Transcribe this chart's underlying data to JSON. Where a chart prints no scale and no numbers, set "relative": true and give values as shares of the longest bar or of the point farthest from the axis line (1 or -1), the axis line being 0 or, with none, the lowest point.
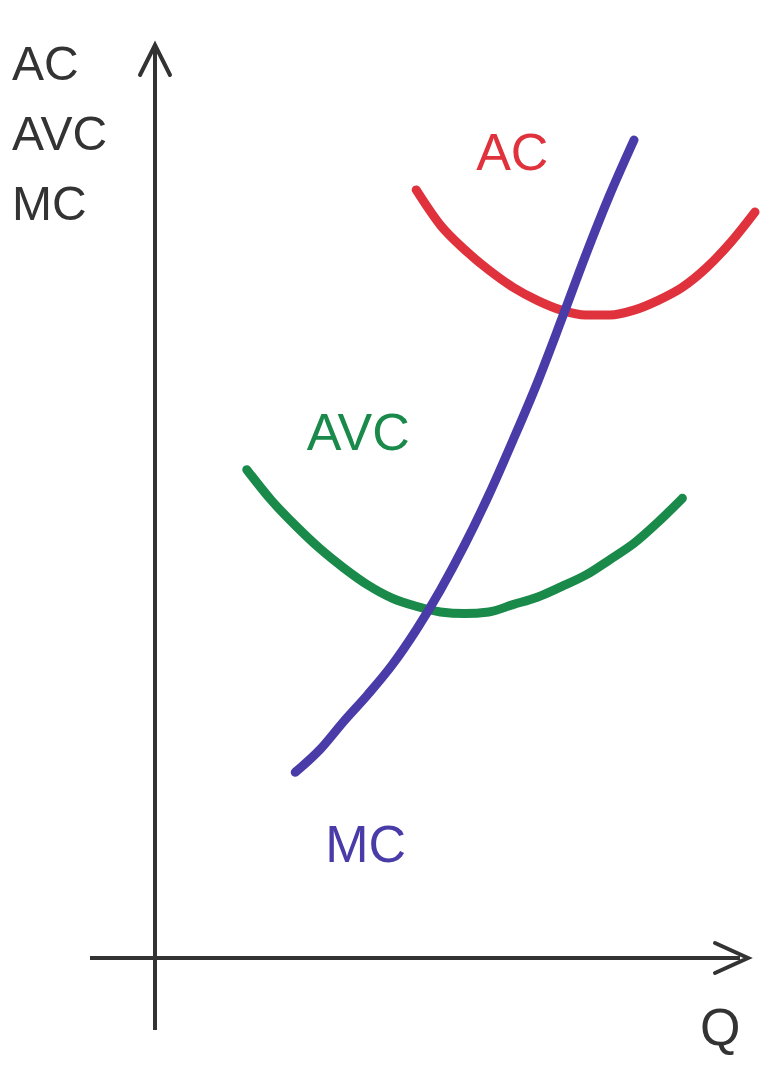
{
  "chart_data": {
    "type": "line",
    "relative": true,
    "ylabel": "AC AVC MC",
    "xlabel": "Q",
    "marker": "none",
    "line_style": "solid",
    "categories": [
      null,
      null,
      null,
      null,
      null,
      null,
      null,
      null,
      null,
      null,
      null,
      null,
      null,
      null,
      null,
      null,
      null,
      null,
      null,
      null,
      null,
      null,
      null,
      null,
      null,
      null
    ],
    "series": [
      {
        "name": "AC",
        "color": "#e0323c",
        "values": [
          null,
          null,
          null,
          null,
          null,
          null,
          null,
          null,
          null,
          null,
          null,
          0.939,
          0.896,
          0.866,
          0.841,
          0.82,
          0.804,
          0.792,
          0.786,
          0.786,
          0.792,
          0.804,
          0.82,
          0.844,
          0.875,
          0.912
        ]
      },
      {
        "name": "AVC",
        "color": "#1a8a4a",
        "values": [
          null,
          null,
          null,
          null,
          0.597,
          0.56,
          0.529,
          0.501,
          0.477,
          0.456,
          0.44,
          0.43,
          0.423,
          0.421,
          0.423,
          0.432,
          0.441,
          0.454,
          0.468,
          0.487,
          0.507,
          0.533,
          0.562,
          null,
          null,
          null
        ]
      },
      {
        "name": "MC",
        "color": "#4a3ca8",
        "values": [
          null,
          null,
          null,
          null,
          null,
          null,
          0.227,
          0.254,
          0.289,
          0.322,
          0.358,
          0.401,
          0.45,
          0.505,
          0.566,
          0.633,
          0.703,
          0.78,
          0.859,
          0.933,
          1,
          null,
          null,
          null,
          null,
          null
        ]
      }
    ]
  }
}
